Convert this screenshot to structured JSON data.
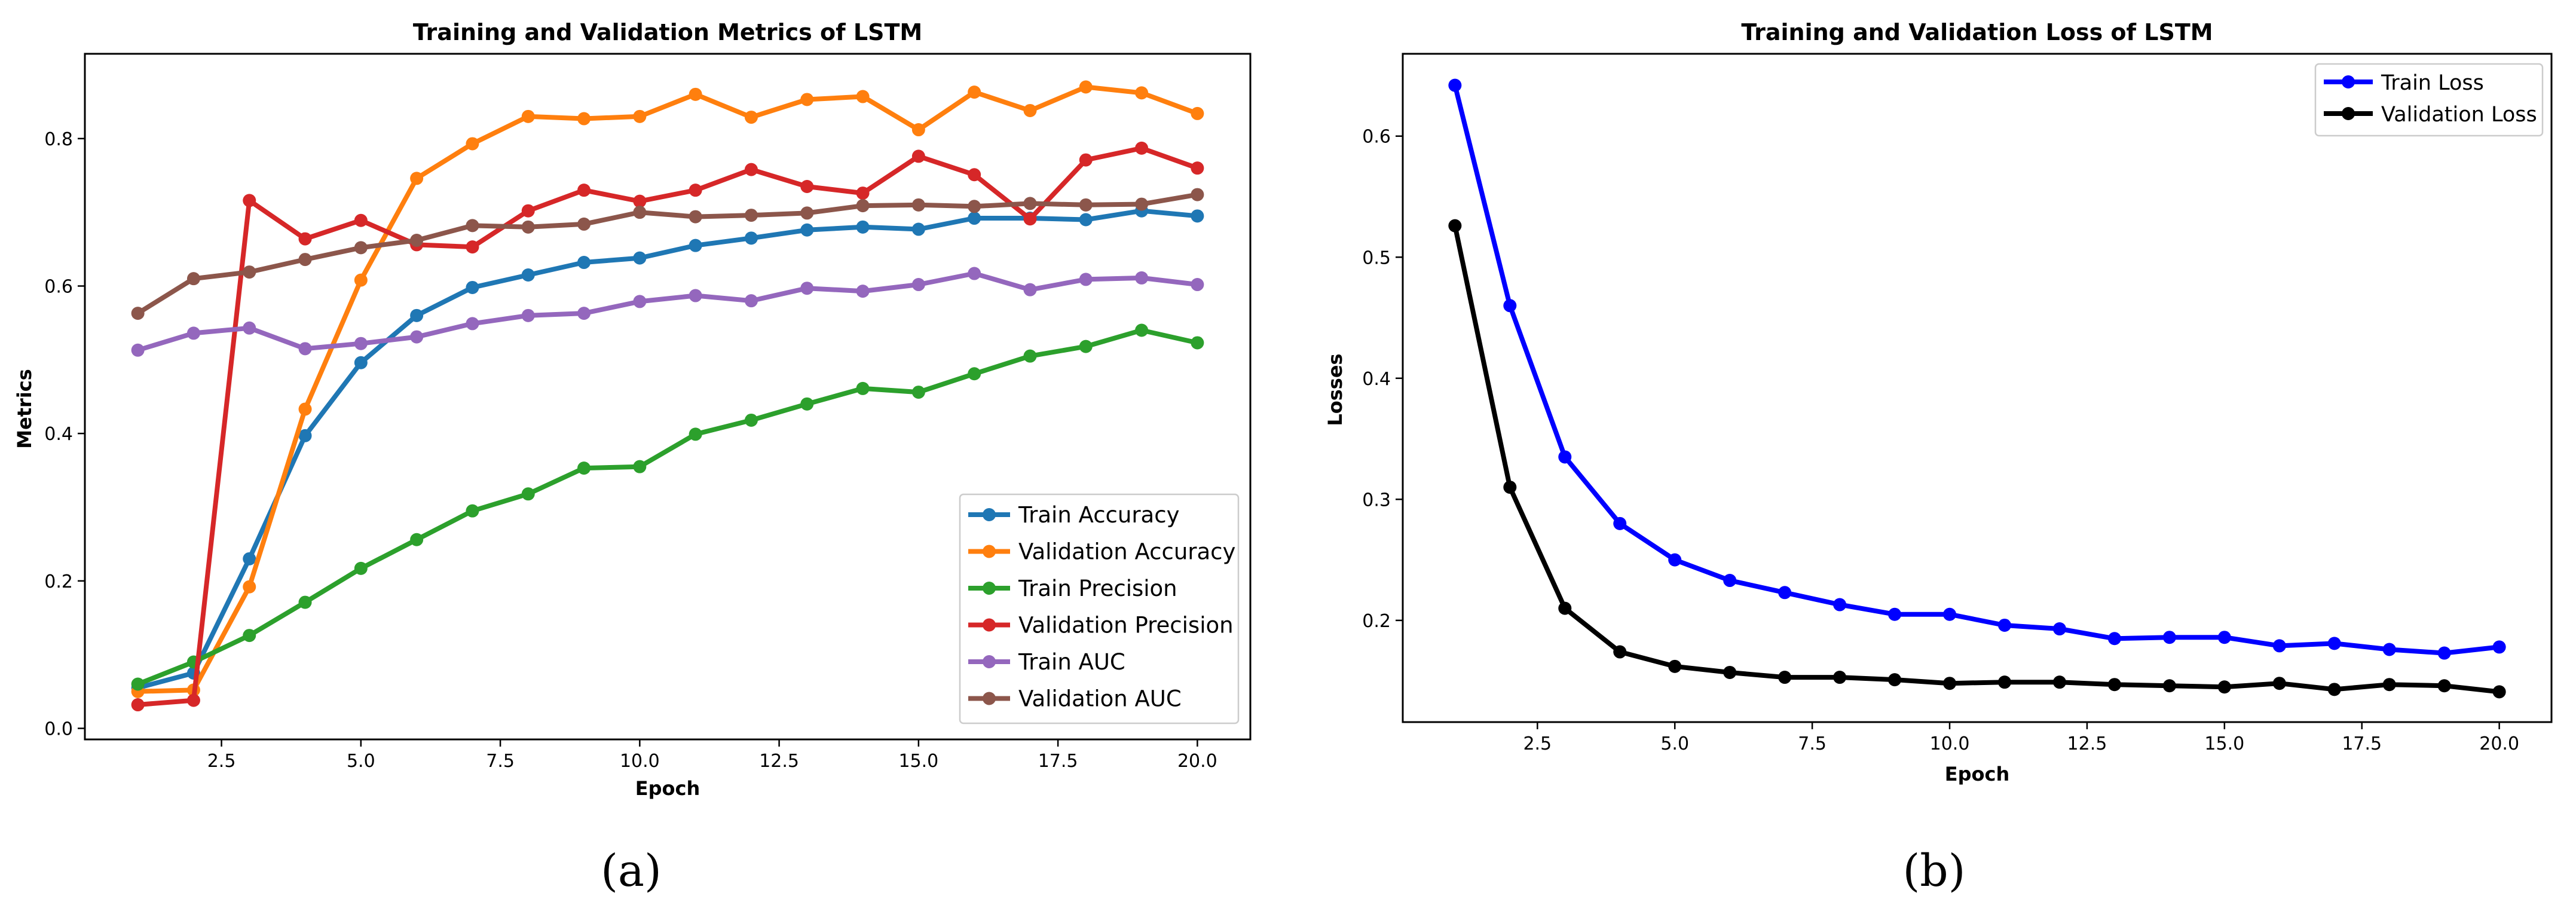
{
  "chart_data": [
    {
      "type": "line",
      "panel_label": "(a)",
      "title": "Training and Validation Metrics of LSTM",
      "xlabel": "Epoch",
      "ylabel": "Metrics",
      "xlim": [
        0.05,
        20.95
      ],
      "ylim": [
        -0.015,
        0.915
      ],
      "xticks": [
        2.5,
        5.0,
        7.5,
        10.0,
        12.5,
        15.0,
        17.5,
        20.0
      ],
      "xtick_labels": [
        "2.5",
        "5.0",
        "7.5",
        "10.0",
        "12.5",
        "15.0",
        "17.5",
        "20.0"
      ],
      "yticks": [
        0.0,
        0.2,
        0.4,
        0.6,
        0.8
      ],
      "ytick_labels": [
        "0.0",
        "0.2",
        "0.4",
        "0.6",
        "0.8"
      ],
      "grid": false,
      "legend_position": "lower-right",
      "x": [
        1,
        2,
        3,
        4,
        5,
        6,
        7,
        8,
        9,
        10,
        11,
        12,
        13,
        14,
        15,
        16,
        17,
        18,
        19,
        20
      ],
      "series": [
        {
          "name": "Train Accuracy",
          "color": "#1f77b4",
          "values": [
            0.055,
            0.075,
            0.23,
            0.397,
            0.496,
            0.56,
            0.598,
            0.615,
            0.632,
            0.638,
            0.655,
            0.665,
            0.676,
            0.68,
            0.677,
            0.692,
            0.692,
            0.69,
            0.702,
            0.695
          ]
        },
        {
          "name": "Validation Accuracy",
          "color": "#ff7f0e",
          "values": [
            0.05,
            0.052,
            0.192,
            0.433,
            0.608,
            0.746,
            0.793,
            0.83,
            0.827,
            0.83,
            0.86,
            0.829,
            0.853,
            0.857,
            0.812,
            0.863,
            0.838,
            0.87,
            0.862,
            0.834
          ]
        },
        {
          "name": "Train Precision",
          "color": "#2ca02c",
          "values": [
            0.06,
            0.09,
            0.126,
            0.171,
            0.217,
            0.256,
            0.295,
            0.318,
            0.353,
            0.355,
            0.399,
            0.418,
            0.44,
            0.461,
            0.456,
            0.481,
            0.505,
            0.518,
            0.54,
            0.523
          ]
        },
        {
          "name": "Validation Precision",
          "color": "#d62728",
          "values": [
            0.032,
            0.038,
            0.716,
            0.664,
            0.689,
            0.656,
            0.653,
            0.702,
            0.73,
            0.715,
            0.73,
            0.758,
            0.735,
            0.726,
            0.776,
            0.751,
            0.691,
            0.771,
            0.787,
            0.76
          ]
        },
        {
          "name": "Train AUC",
          "color": "#9467bd",
          "values": [
            0.513,
            0.536,
            0.543,
            0.515,
            0.522,
            0.531,
            0.549,
            0.56,
            0.563,
            0.579,
            0.587,
            0.58,
            0.597,
            0.593,
            0.602,
            0.617,
            0.595,
            0.609,
            0.611,
            0.602
          ]
        },
        {
          "name": "Validation AUC",
          "color": "#8c564b",
          "values": [
            0.563,
            0.61,
            0.619,
            0.636,
            0.652,
            0.662,
            0.682,
            0.68,
            0.684,
            0.7,
            0.694,
            0.696,
            0.699,
            0.709,
            0.71,
            0.708,
            0.712,
            0.71,
            0.711,
            0.724
          ]
        }
      ]
    },
    {
      "type": "line",
      "panel_label": "(b)",
      "title": "Training and Validation Loss of LSTM",
      "xlabel": "Epoch",
      "ylabel": "Losses",
      "xlim": [
        0.05,
        20.95
      ],
      "ylim": [
        0.116,
        0.668
      ],
      "xticks": [
        2.5,
        5.0,
        7.5,
        10.0,
        12.5,
        15.0,
        17.5,
        20.0
      ],
      "xtick_labels": [
        "2.5",
        "5.0",
        "7.5",
        "10.0",
        "12.5",
        "15.0",
        "17.5",
        "20.0"
      ],
      "yticks": [
        0.2,
        0.3,
        0.4,
        0.5,
        0.6
      ],
      "ytick_labels": [
        "0.2",
        "0.3",
        "0.4",
        "0.5",
        "0.6"
      ],
      "grid": false,
      "legend_position": "upper-right",
      "x": [
        1,
        2,
        3,
        4,
        5,
        6,
        7,
        8,
        9,
        10,
        11,
        12,
        13,
        14,
        15,
        16,
        17,
        18,
        19,
        20
      ],
      "series": [
        {
          "name": "Train Loss",
          "color": "#0000ff",
          "values": [
            0.642,
            0.46,
            0.335,
            0.28,
            0.25,
            0.233,
            0.223,
            0.213,
            0.205,
            0.205,
            0.196,
            0.193,
            0.185,
            0.186,
            0.186,
            0.179,
            0.181,
            0.176,
            0.173,
            0.178
          ]
        },
        {
          "name": "Validation Loss",
          "color": "#000000",
          "values": [
            0.526,
            0.31,
            0.21,
            0.174,
            0.162,
            0.157,
            0.153,
            0.153,
            0.151,
            0.148,
            0.149,
            0.149,
            0.147,
            0.146,
            0.145,
            0.148,
            0.143,
            0.147,
            0.146,
            0.141
          ]
        }
      ]
    }
  ]
}
